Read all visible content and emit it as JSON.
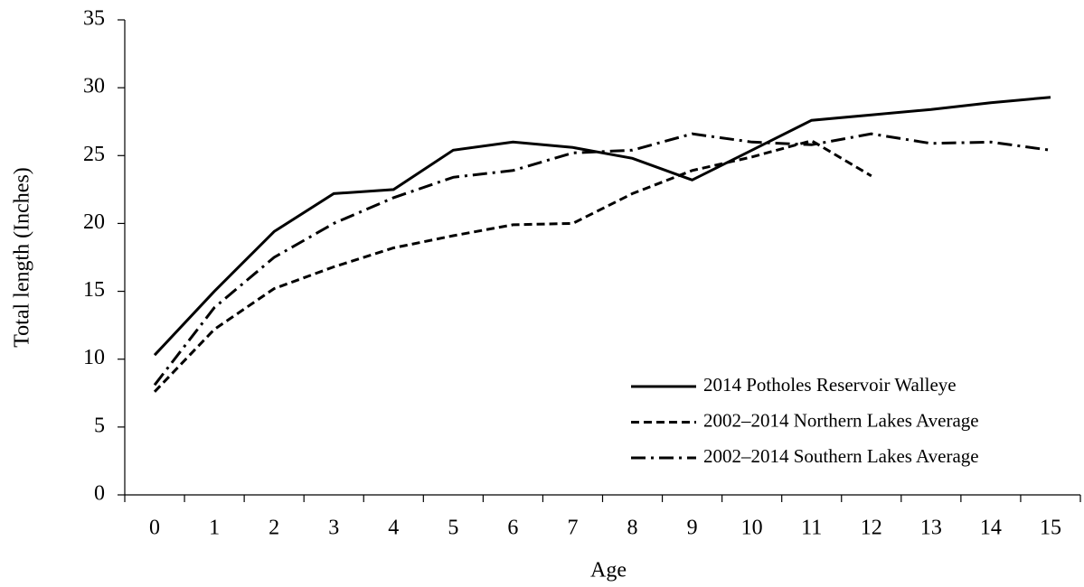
{
  "chart_data": {
    "type": "line",
    "x_label": "Age",
    "y_label": "Total length (Inches)",
    "categories": [
      "0",
      "1",
      "2",
      "3",
      "4",
      "5",
      "6",
      "7",
      "8",
      "9",
      "10",
      "11",
      "12",
      "13",
      "14",
      "15"
    ],
    "series": [
      {
        "name": "2014 Potholes Reservoir Walleye",
        "color": "#000000",
        "dash": "solid",
        "values": [
          10.3,
          15,
          19.4,
          22.2,
          22.5,
          25.4,
          26,
          25.6,
          24.8,
          23.2,
          25.4,
          27.6,
          28.0,
          28.4,
          28.9,
          29.3
        ]
      },
      {
        "name": "2002–2014 Northern Lakes Average",
        "color": "#000000",
        "dash": "dashed",
        "values": [
          7.6,
          12.2,
          15.2,
          16.8,
          18.2,
          19.1,
          19.9,
          20,
          22.2,
          23.9,
          24.9,
          26.1,
          23.5,
          null,
          null,
          null
        ]
      },
      {
        "name": "2002–2014 Southern Lakes Average",
        "color": "#000000",
        "dash": "dashdot",
        "values": [
          8.1,
          13.8,
          17.5,
          20,
          21.9,
          23.4,
          23.9,
          25.2,
          25.4,
          26.6,
          26,
          25.8,
          26.6,
          25.9,
          26,
          25.4
        ]
      }
    ],
    "ylim": [
      0,
      35
    ],
    "yticks": [
      0,
      5,
      10,
      15,
      20,
      25,
      30,
      35
    ],
    "grid": false,
    "legend": "lower right"
  }
}
